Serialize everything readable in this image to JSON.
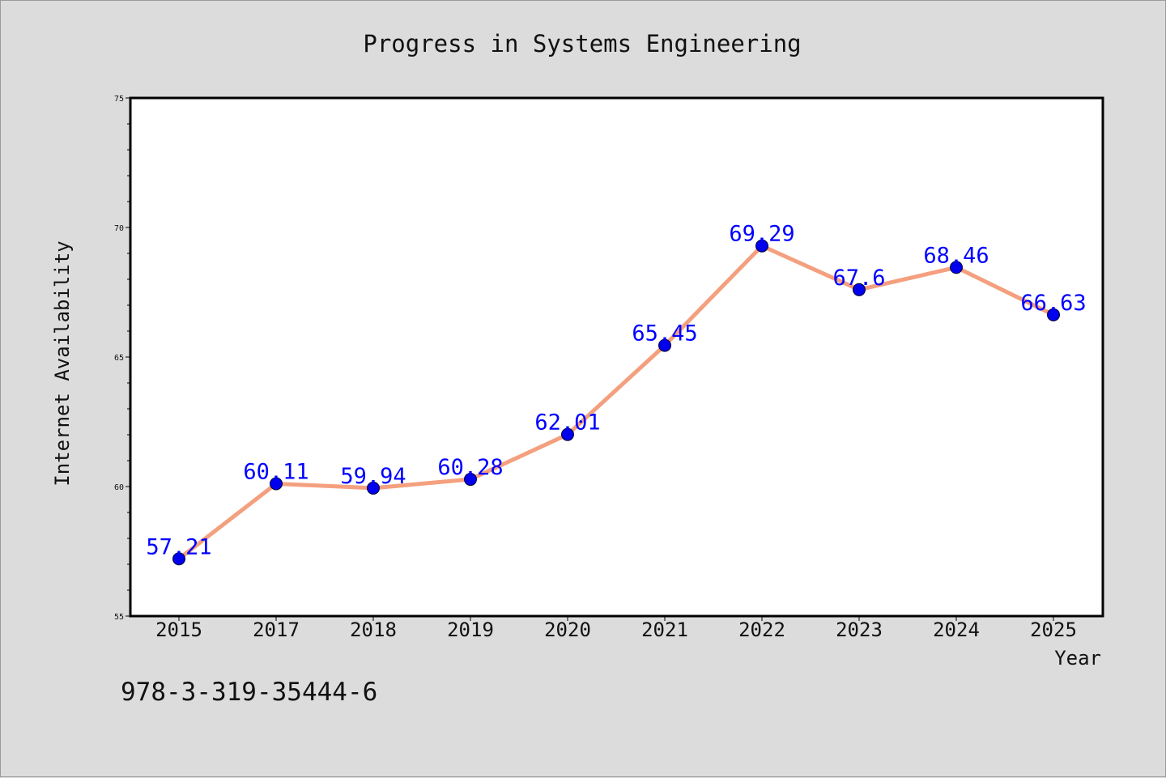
{
  "chart_data": {
    "type": "line",
    "title": "Progress in Systems Engineering",
    "xlabel": "Year",
    "ylabel": "Internet Availability",
    "categories": [
      "2015",
      "2017",
      "2018",
      "2019",
      "2020",
      "2021",
      "2022",
      "2023",
      "2024",
      "2025"
    ],
    "series": [
      {
        "values": [
          57.21,
          60.11,
          59.94,
          60.28,
          62.01,
          65.45,
          69.29,
          67.6,
          68.46,
          66.63
        ],
        "labels": [
          "57.21",
          "60.11",
          "59.94",
          "60.28",
          "62.01",
          "65.45",
          "69.29",
          "67.6",
          "68.46",
          "66.63"
        ],
        "line_color": "#f4a07f",
        "marker_color": "#0000ee"
      }
    ],
    "ylim": [
      55,
      75
    ],
    "yticks": [
      "55",
      "60",
      "65",
      "70",
      "75"
    ],
    "grid": false,
    "legend": "none",
    "label_color": "#0000ff"
  },
  "annotation": "978-3-319-35444-6"
}
